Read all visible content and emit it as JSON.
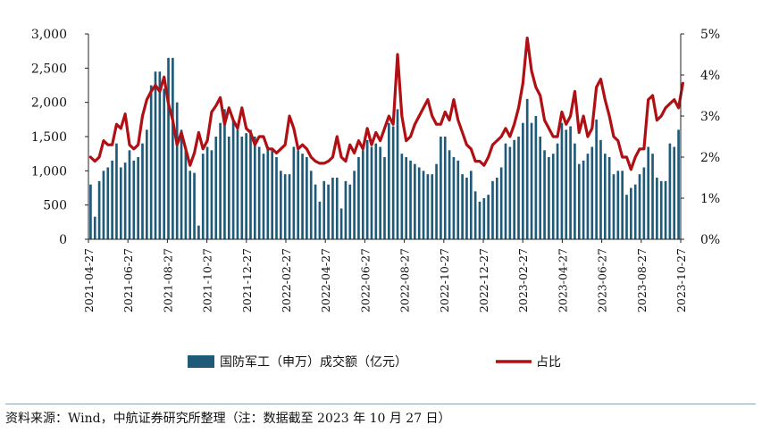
{
  "chart_data": {
    "type": "bar+line",
    "y_left": {
      "lim": [
        0,
        3000
      ],
      "ticks": [
        "0",
        "500",
        "1,000",
        "1,500",
        "2,000",
        "2,500",
        "3,000"
      ]
    },
    "y_right": {
      "lim": [
        0,
        5
      ],
      "ticks": [
        "0%",
        "1%",
        "2%",
        "3%",
        "4%",
        "5%"
      ]
    },
    "x_ticks": [
      "2021-04-27",
      "2021-06-27",
      "2021-08-27",
      "2021-10-27",
      "2021-12-27",
      "2022-02-27",
      "2022-04-27",
      "2022-06-27",
      "2022-08-27",
      "2022-10-27",
      "2022-12-27",
      "2023-02-27",
      "2023-04-27",
      "2023-06-27",
      "2023-08-27",
      "2023-10-27"
    ],
    "series": [
      {
        "name": "国防军工（申万）成交额（亿元）",
        "kind": "bar",
        "axis": "left",
        "color": "#1f5a78",
        "values": [
          800,
          330,
          850,
          1000,
          1050,
          1150,
          1400,
          1050,
          1120,
          1300,
          1150,
          1200,
          1400,
          1600,
          2250,
          2450,
          2450,
          2200,
          2650,
          2650,
          2000,
          1600,
          1300,
          1000,
          970,
          200,
          1250,
          1350,
          1300,
          1500,
          1700,
          1900,
          1500,
          1750,
          1600,
          1500,
          1550,
          1600,
          1500,
          1350,
          1250,
          1350,
          1300,
          1200,
          1000,
          950,
          950,
          1350,
          1300,
          1250,
          1200,
          1000,
          800,
          550,
          850,
          800,
          900,
          900,
          450,
          850,
          800,
          1000,
          1200,
          1300,
          1450,
          1350,
          1400,
          1350,
          1200,
          1700,
          1650,
          1900,
          1250,
          1200,
          1150,
          1100,
          1050,
          1000,
          950,
          950,
          1100,
          1500,
          1500,
          1300,
          1200,
          1150,
          950,
          900,
          1000,
          700,
          550,
          600,
          650,
          850,
          900,
          1050,
          1400,
          1350,
          1450,
          1500,
          1700,
          2050,
          1700,
          1800,
          1500,
          1300,
          1200,
          1250,
          1400,
          1700,
          1600,
          1650,
          1400,
          1100,
          1150,
          1250,
          1350,
          1750,
          1450,
          1250,
          1200,
          950,
          1000,
          1000,
          650,
          750,
          800,
          950,
          1050,
          1350,
          1250,
          900,
          850,
          850,
          1400,
          1350,
          1600
        ]
      },
      {
        "name": "占比",
        "kind": "line",
        "axis": "right",
        "color": "#b00f14",
        "values": [
          2.0,
          1.9,
          2.0,
          2.4,
          2.3,
          2.3,
          2.8,
          2.7,
          3.05,
          2.3,
          2.2,
          2.3,
          3.0,
          3.4,
          3.6,
          3.75,
          3.6,
          3.95,
          3.3,
          2.9,
          2.3,
          2.6,
          2.2,
          1.8,
          2.1,
          2.6,
          2.2,
          2.4,
          3.1,
          3.25,
          3.45,
          2.8,
          3.2,
          2.9,
          2.7,
          3.2,
          2.7,
          2.6,
          2.3,
          2.5,
          2.5,
          2.2,
          2.2,
          2.1,
          2.2,
          2.3,
          3.0,
          2.7,
          2.2,
          2.3,
          2.2,
          2.0,
          1.9,
          1.85,
          1.85,
          1.9,
          2.0,
          2.5,
          2.0,
          1.9,
          2.3,
          2.1,
          2.4,
          2.2,
          2.7,
          2.3,
          2.6,
          2.4,
          2.7,
          3.0,
          2.8,
          4.5,
          3.0,
          2.4,
          2.5,
          2.8,
          3.0,
          3.2,
          3.4,
          3.0,
          2.8,
          2.8,
          3.1,
          2.9,
          3.4,
          2.9,
          2.6,
          2.3,
          2.2,
          1.9,
          1.9,
          1.8,
          2.0,
          2.3,
          2.4,
          2.5,
          2.7,
          2.5,
          2.8,
          3.2,
          3.8,
          4.9,
          4.1,
          3.7,
          3.5,
          2.9,
          2.7,
          2.5,
          2.5,
          3.1,
          2.8,
          3.0,
          3.6,
          2.6,
          3.0,
          2.5,
          2.7,
          3.7,
          3.9,
          3.4,
          3.0,
          2.5,
          2.4,
          2.0,
          2.0,
          1.7,
          2.0,
          2.2,
          2.2,
          3.4,
          3.5,
          2.9,
          3.0,
          3.2,
          3.3,
          3.4,
          3.2,
          3.8
        ]
      }
    ],
    "legend": [
      "国防军工（申万）成交额（亿元）",
      "占比"
    ],
    "legend_position": "bottom"
  },
  "source": "资料来源：Wind，中航证券研究所整理（注：数据截至 2023 年 10 月 27 日）"
}
